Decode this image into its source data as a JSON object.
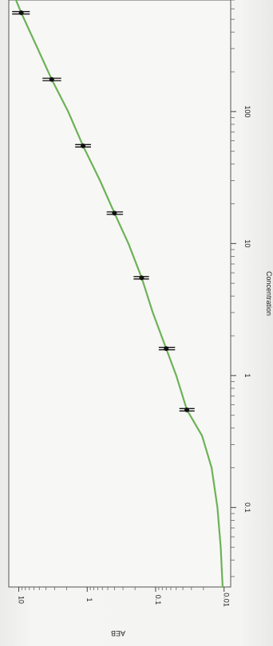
{
  "chart_data": {
    "type": "scatter",
    "xlabel": "Concentration",
    "ylabel": "AEB",
    "x_scale": "log",
    "y_scale": "log",
    "xlim": [
      0.025,
      700
    ],
    "ylim": [
      0.008,
      14
    ],
    "x_ticks": [
      0.1,
      1,
      10,
      100
    ],
    "x_tick_labels": [
      "0.1",
      "1",
      "10",
      "100"
    ],
    "y_ticks": [
      0.01,
      0.1,
      1,
      10
    ],
    "y_tick_labels": [
      "0.01",
      "0.1",
      "1",
      "10"
    ],
    "grid": false,
    "points": [
      {
        "x": 0.55,
        "y": 0.035,
        "err_low": 0.027,
        "err_high": 0.045
      },
      {
        "x": 1.6,
        "y": 0.07,
        "err_low": 0.052,
        "err_high": 0.09
      },
      {
        "x": 5.5,
        "y": 0.16,
        "err_low": 0.125,
        "err_high": 0.21
      },
      {
        "x": 17,
        "y": 0.4,
        "err_low": 0.3,
        "err_high": 0.52
      },
      {
        "x": 55,
        "y": 1.15,
        "err_low": 0.88,
        "err_high": 1.5
      },
      {
        "x": 175,
        "y": 3.3,
        "err_low": 2.4,
        "err_high": 4.5
      },
      {
        "x": 560,
        "y": 9.2,
        "err_low": 6.9,
        "err_high": 12.5
      }
    ],
    "fit_curve": {
      "color": "#6cb257",
      "x": [
        0.025,
        0.05,
        0.1,
        0.2,
        0.35,
        0.55,
        1,
        1.6,
        3,
        5.5,
        10,
        17,
        30,
        55,
        100,
        175,
        300,
        560,
        700
      ],
      "y": [
        0.0105,
        0.0112,
        0.0125,
        0.0152,
        0.021,
        0.035,
        0.05,
        0.07,
        0.11,
        0.16,
        0.25,
        0.4,
        0.65,
        1.15,
        1.9,
        3.3,
        5.3,
        9.2,
        11.0
      ]
    }
  }
}
